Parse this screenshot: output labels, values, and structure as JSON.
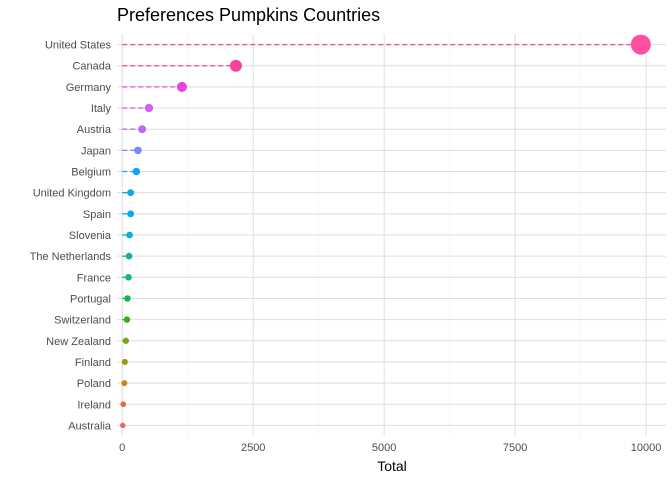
{
  "chart_data": {
    "type": "lollipop",
    "title": "Preferences Pumpkins Countries",
    "xlabel": "Total",
    "ylabel": "",
    "xlim": [
      -100,
      10380
    ],
    "xticks": [
      0,
      2500,
      5000,
      7500,
      10000
    ],
    "xtick_labels": [
      "0",
      "2500",
      "5000",
      "7500",
      "10000"
    ],
    "grid": true,
    "categories": [
      "United States",
      "Canada",
      "Germany",
      "Italy",
      "Austria",
      "Japan",
      "Belgium",
      "United Kingdom",
      "Spain",
      "Slovenia",
      "The Netherlands",
      "France",
      "Portugal",
      "Switzerland",
      "New Zealand",
      "Finland",
      "Poland",
      "Ireland",
      "Australia"
    ],
    "values": [
      9900,
      2170,
      1140,
      510,
      380,
      300,
      270,
      160,
      160,
      140,
      130,
      120,
      100,
      90,
      70,
      50,
      40,
      20,
      10
    ],
    "colors": [
      "#FF4FA0",
      "#F8409E",
      "#F041D6",
      "#D65EF0",
      "#C068F6",
      "#6E8CFF",
      "#14A3F5",
      "#10A7E8",
      "#05AEE6",
      "#0BB2CB",
      "#14B3A6",
      "#11B87A",
      "#12B74B",
      "#3AAE17",
      "#7AA418",
      "#9C9912",
      "#C18712",
      "#E16E45",
      "#EE6765"
    ]
  }
}
